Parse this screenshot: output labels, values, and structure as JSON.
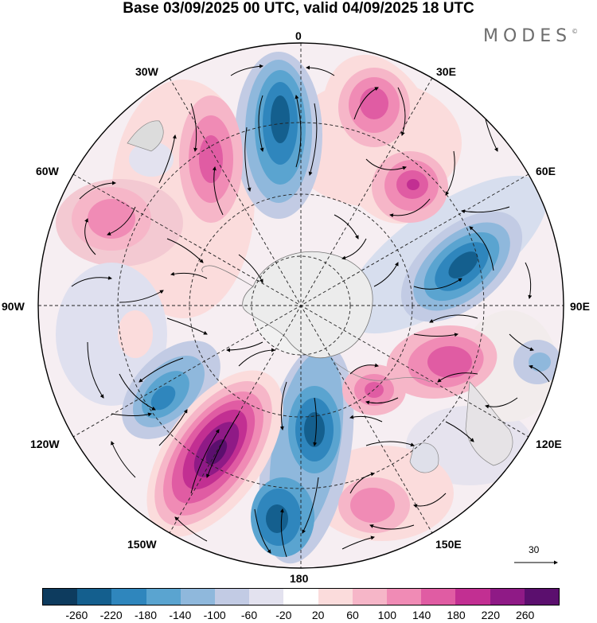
{
  "title": "Base 03/09/2025 00 UTC, valid 04/09/2025 18 UTC",
  "brand": {
    "name": "MODES",
    "mark": "©"
  },
  "longitude_labels": {
    "top": "0",
    "upper_left": "30W",
    "upper_right": "30E",
    "mid_left_upper": "60W",
    "mid_right_upper": "60E",
    "left": "90W",
    "right": "90E",
    "mid_left_lower": "120W",
    "mid_right_lower": "120E",
    "lower_left": "150W",
    "lower_right": "150E",
    "bottom": "180"
  },
  "reference_vector": {
    "label": "30"
  },
  "colorbar": {
    "colors": [
      "#0d3b5e",
      "#145f8e",
      "#2f86bd",
      "#5aa4d0",
      "#8fb8dc",
      "#c2cbe4",
      "#e3e2ef",
      "#ffffff",
      "#fbdcdc",
      "#f6b6c8",
      "#f08bb5",
      "#e05ca3",
      "#c22f92",
      "#8f1a86",
      "#5b0f6e"
    ],
    "ticks": [
      "-260",
      "-220",
      "-180",
      "-140",
      "-100",
      "-60",
      "-20",
      "20",
      "60",
      "100",
      "140",
      "180",
      "220",
      "260"
    ]
  },
  "colors": {
    "negative_strong": "#1f6f9f",
    "positive_strong": "#8f1a86",
    "neutral": "#ececec"
  }
}
